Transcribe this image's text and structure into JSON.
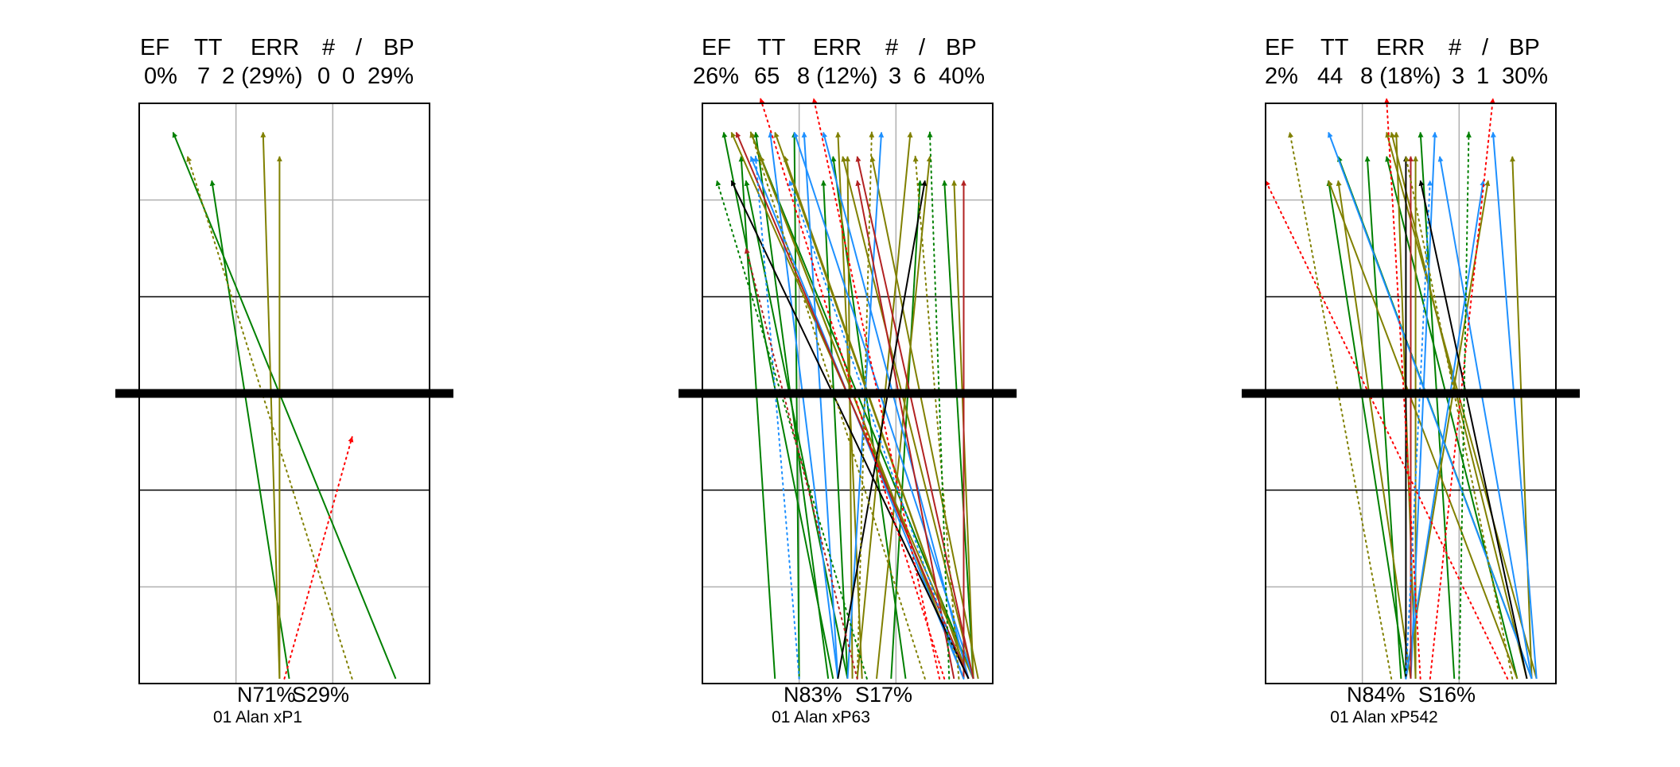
{
  "panels": [
    {
      "header_labels": [
        "EF",
        "TT",
        "ERR",
        "#",
        "/",
        "BP"
      ],
      "header_values": [
        "0%",
        "7",
        "2 (29%)",
        "0",
        "0",
        "29%"
      ],
      "footer_line1": [
        "N71%",
        "S29%"
      ],
      "footer_line2": "01 Alan  xP1"
    },
    {
      "header_labels": [
        "EF",
        "TT",
        "ERR",
        "#",
        "/",
        "BP"
      ],
      "header_values": [
        "26%",
        "65",
        "8 (12%)",
        "3",
        "6",
        "40%"
      ],
      "footer_line1": [
        "N83%",
        "S17%"
      ],
      "footer_line2": "01 Alan  xP63"
    },
    {
      "header_labels": [
        "EF",
        "TT",
        "ERR",
        "#",
        "/",
        "BP"
      ],
      "header_values": [
        "2%",
        "44",
        "8 (18%)",
        "3",
        "1",
        "30%"
      ],
      "footer_line1": [
        "N84%",
        "S16%"
      ],
      "footer_line2": "01 Alan  xP542"
    }
  ],
  "chart_data": [
    {
      "type": "scatter",
      "xlim": [
        0,
        3
      ],
      "ylim": [
        0,
        6
      ],
      "grid": true,
      "net_line_y": 3,
      "series": [
        {
          "color": "#008000",
          "style": "solid",
          "values": [
            [
              2.65,
              0.05,
              0.35,
              5.7
            ],
            [
              1.55,
              0.05,
              0.75,
              5.2
            ]
          ]
        },
        {
          "color": "#808000",
          "style": "solid",
          "values": [
            [
              1.45,
              0.05,
              1.45,
              5.45
            ],
            [
              1.45,
              0.05,
              1.28,
              5.7
            ]
          ]
        },
        {
          "color": "#808000",
          "style": "dotted",
          "values": [
            [
              2.2,
              0.05,
              0.5,
              5.45
            ]
          ]
        },
        {
          "color": "#FF0000",
          "style": "dotted",
          "values": [
            [
              1.5,
              0.05,
              2.2,
              2.55
            ]
          ]
        }
      ]
    },
    {
      "type": "scatter",
      "xlim": [
        0,
        3
      ],
      "ylim": [
        0,
        6
      ],
      "grid": true,
      "net_line_y": 3,
      "series": [
        {
          "color": "#008000",
          "style": "solid",
          "values": [
            [
              1.35,
              0.05,
              0.22,
              5.7
            ],
            [
              1.5,
              0.05,
              0.45,
              5.2
            ],
            [
              0.75,
              0.05,
              0.4,
              5.45
            ],
            [
              2.8,
              0.05,
              0.5,
              5.7
            ],
            [
              1.5,
              0.05,
              1.25,
              5.2
            ],
            [
              1.95,
              0.05,
              2.25,
              5.2
            ],
            [
              1.0,
              0.05,
              0.95,
              5.7
            ],
            [
              2.8,
              0.05,
              2.5,
              5.2
            ],
            [
              1.3,
              0.05,
              0.55,
              5.7
            ],
            [
              2.1,
              0.05,
              1.35,
              5.45
            ]
          ]
        },
        {
          "color": "#808000",
          "style": "solid",
          "values": [
            [
              2.8,
              0.05,
              0.3,
              5.7
            ],
            [
              2.75,
              0.05,
              0.75,
              5.7
            ],
            [
              1.55,
              0.05,
              1.5,
              5.45
            ],
            [
              2.7,
              0.05,
              0.5,
              5.7
            ],
            [
              2.8,
              0.05,
              1.45,
              5.45
            ],
            [
              1.6,
              0.05,
              2.15,
              5.7
            ],
            [
              2.85,
              0.05,
              1.75,
              5.45
            ],
            [
              1.8,
              0.05,
              2.35,
              5.45
            ],
            [
              2.75,
              0.05,
              0.85,
              5.45
            ],
            [
              2.8,
              0.05,
              2.6,
              5.2
            ],
            [
              1.65,
              0.05,
              1.4,
              5.7
            ],
            [
              2.7,
              0.05,
              0.6,
              5.45
            ]
          ]
        },
        {
          "color": "#1E90FF",
          "style": "solid",
          "values": [
            [
              1.4,
              0.05,
              0.7,
              5.7
            ],
            [
              2.75,
              0.05,
              1.25,
              5.7
            ],
            [
              2.7,
              0.05,
              0.5,
              5.45
            ],
            [
              1.5,
              0.05,
              1.85,
              5.7
            ],
            [
              2.8,
              0.05,
              0.95,
              5.7
            ],
            [
              1.4,
              0.05,
              1.05,
              5.7
            ]
          ]
        },
        {
          "color": "#B22222",
          "style": "solid",
          "values": [
            [
              2.8,
              0.05,
              1.6,
              5.45
            ],
            [
              2.6,
              0.05,
              1.6,
              5.2
            ],
            [
              2.7,
              0.05,
              2.7,
              5.2
            ],
            [
              2.75,
              0.05,
              0.35,
              5.7
            ]
          ]
        },
        {
          "color": "#000000",
          "style": "solid",
          "values": [
            [
              2.75,
              0.05,
              0.3,
              5.2
            ],
            [
              1.4,
              0.05,
              2.3,
              5.2
            ]
          ]
        },
        {
          "color": "#FF0000",
          "style": "dotted",
          "values": [
            [
              2.5,
              0.05,
              0.6,
              6.05
            ],
            [
              2.45,
              0.05,
              1.15,
              6.05
            ]
          ]
        },
        {
          "color": "#1E90FF",
          "style": "dotted",
          "values": [
            [
              1.0,
              0.05,
              0.55,
              5.45
            ],
            [
              2.7,
              0.05,
              0.9,
              5.2
            ]
          ]
        },
        {
          "color": "#808000",
          "style": "dotted",
          "values": [
            [
              2.3,
              0.05,
              0.5,
              5.7
            ],
            [
              1.6,
              0.05,
              1.75,
              5.7
            ],
            [
              2.65,
              0.05,
              2.2,
              5.45
            ]
          ]
        },
        {
          "color": "#008000",
          "style": "dotted",
          "values": [
            [
              1.7,
              0.05,
              0.15,
              5.2
            ],
            [
              2.55,
              0.05,
              2.35,
              5.7
            ]
          ]
        },
        {
          "color": "#B22222",
          "style": "dotted",
          "values": [
            [
              1.6,
              0.05,
              0.45,
              4.5
            ]
          ]
        }
      ]
    },
    {
      "type": "scatter",
      "xlim": [
        0,
        3
      ],
      "ylim": [
        0,
        6
      ],
      "grid": true,
      "net_line_y": 3,
      "series": [
        {
          "color": "#008000",
          "style": "solid",
          "values": [
            [
              1.45,
              0.05,
              0.65,
              5.2
            ],
            [
              2.75,
              0.05,
              0.75,
              5.45
            ],
            [
              1.95,
              0.05,
              1.6,
              5.7
            ],
            [
              2.6,
              0.05,
              1.25,
              5.45
            ],
            [
              1.4,
              0.05,
              1.05,
              5.45
            ]
          ]
        },
        {
          "color": "#808000",
          "style": "solid",
          "values": [
            [
              1.5,
              0.05,
              0.75,
              5.2
            ],
            [
              2.7,
              0.05,
              1.3,
              5.7
            ],
            [
              1.55,
              0.05,
              1.55,
              5.45
            ],
            [
              2.75,
              0.05,
              2.55,
              5.45
            ],
            [
              1.45,
              0.05,
              2.3,
              5.2
            ],
            [
              2.8,
              0.05,
              1.25,
              5.7
            ],
            [
              2.6,
              0.05,
              0.65,
              5.2
            ],
            [
              1.55,
              0.05,
              1.35,
              5.7
            ]
          ]
        },
        {
          "color": "#1E90FF",
          "style": "solid",
          "values": [
            [
              2.8,
              0.05,
              2.35,
              5.7
            ],
            [
              1.45,
              0.05,
              2.25,
              5.2
            ],
            [
              2.75,
              0.05,
              0.65,
              5.7
            ],
            [
              1.5,
              0.05,
              1.75,
              5.7
            ],
            [
              2.75,
              0.05,
              1.8,
              5.45
            ]
          ]
        },
        {
          "color": "#000000",
          "style": "solid",
          "values": [
            [
              2.7,
              0.05,
              1.6,
              5.2
            ],
            [
              1.45,
              0.05,
              1.45,
              5.45
            ]
          ]
        },
        {
          "color": "#B22222",
          "style": "solid",
          "values": [
            [
              1.5,
              0.05,
              1.5,
              5.45
            ]
          ]
        },
        {
          "color": "#FF0000",
          "style": "dotted",
          "values": [
            [
              1.6,
              0.05,
              1.25,
              6.05
            ],
            [
              1.7,
              0.05,
              2.35,
              6.05
            ],
            [
              2.5,
              0.05,
              0.0,
              5.2
            ]
          ]
        },
        {
          "color": "#808000",
          "style": "dotted",
          "values": [
            [
              1.3,
              0.05,
              0.25,
              5.7
            ],
            [
              2.55,
              0.05,
              1.45,
              5.45
            ]
          ]
        },
        {
          "color": "#008000",
          "style": "dotted",
          "values": [
            [
              2.0,
              0.05,
              2.1,
              5.7
            ]
          ]
        },
        {
          "color": "#1E90FF",
          "style": "dotted",
          "values": [
            [
              1.45,
              0.05,
              1.7,
              5.2
            ]
          ]
        }
      ]
    }
  ]
}
